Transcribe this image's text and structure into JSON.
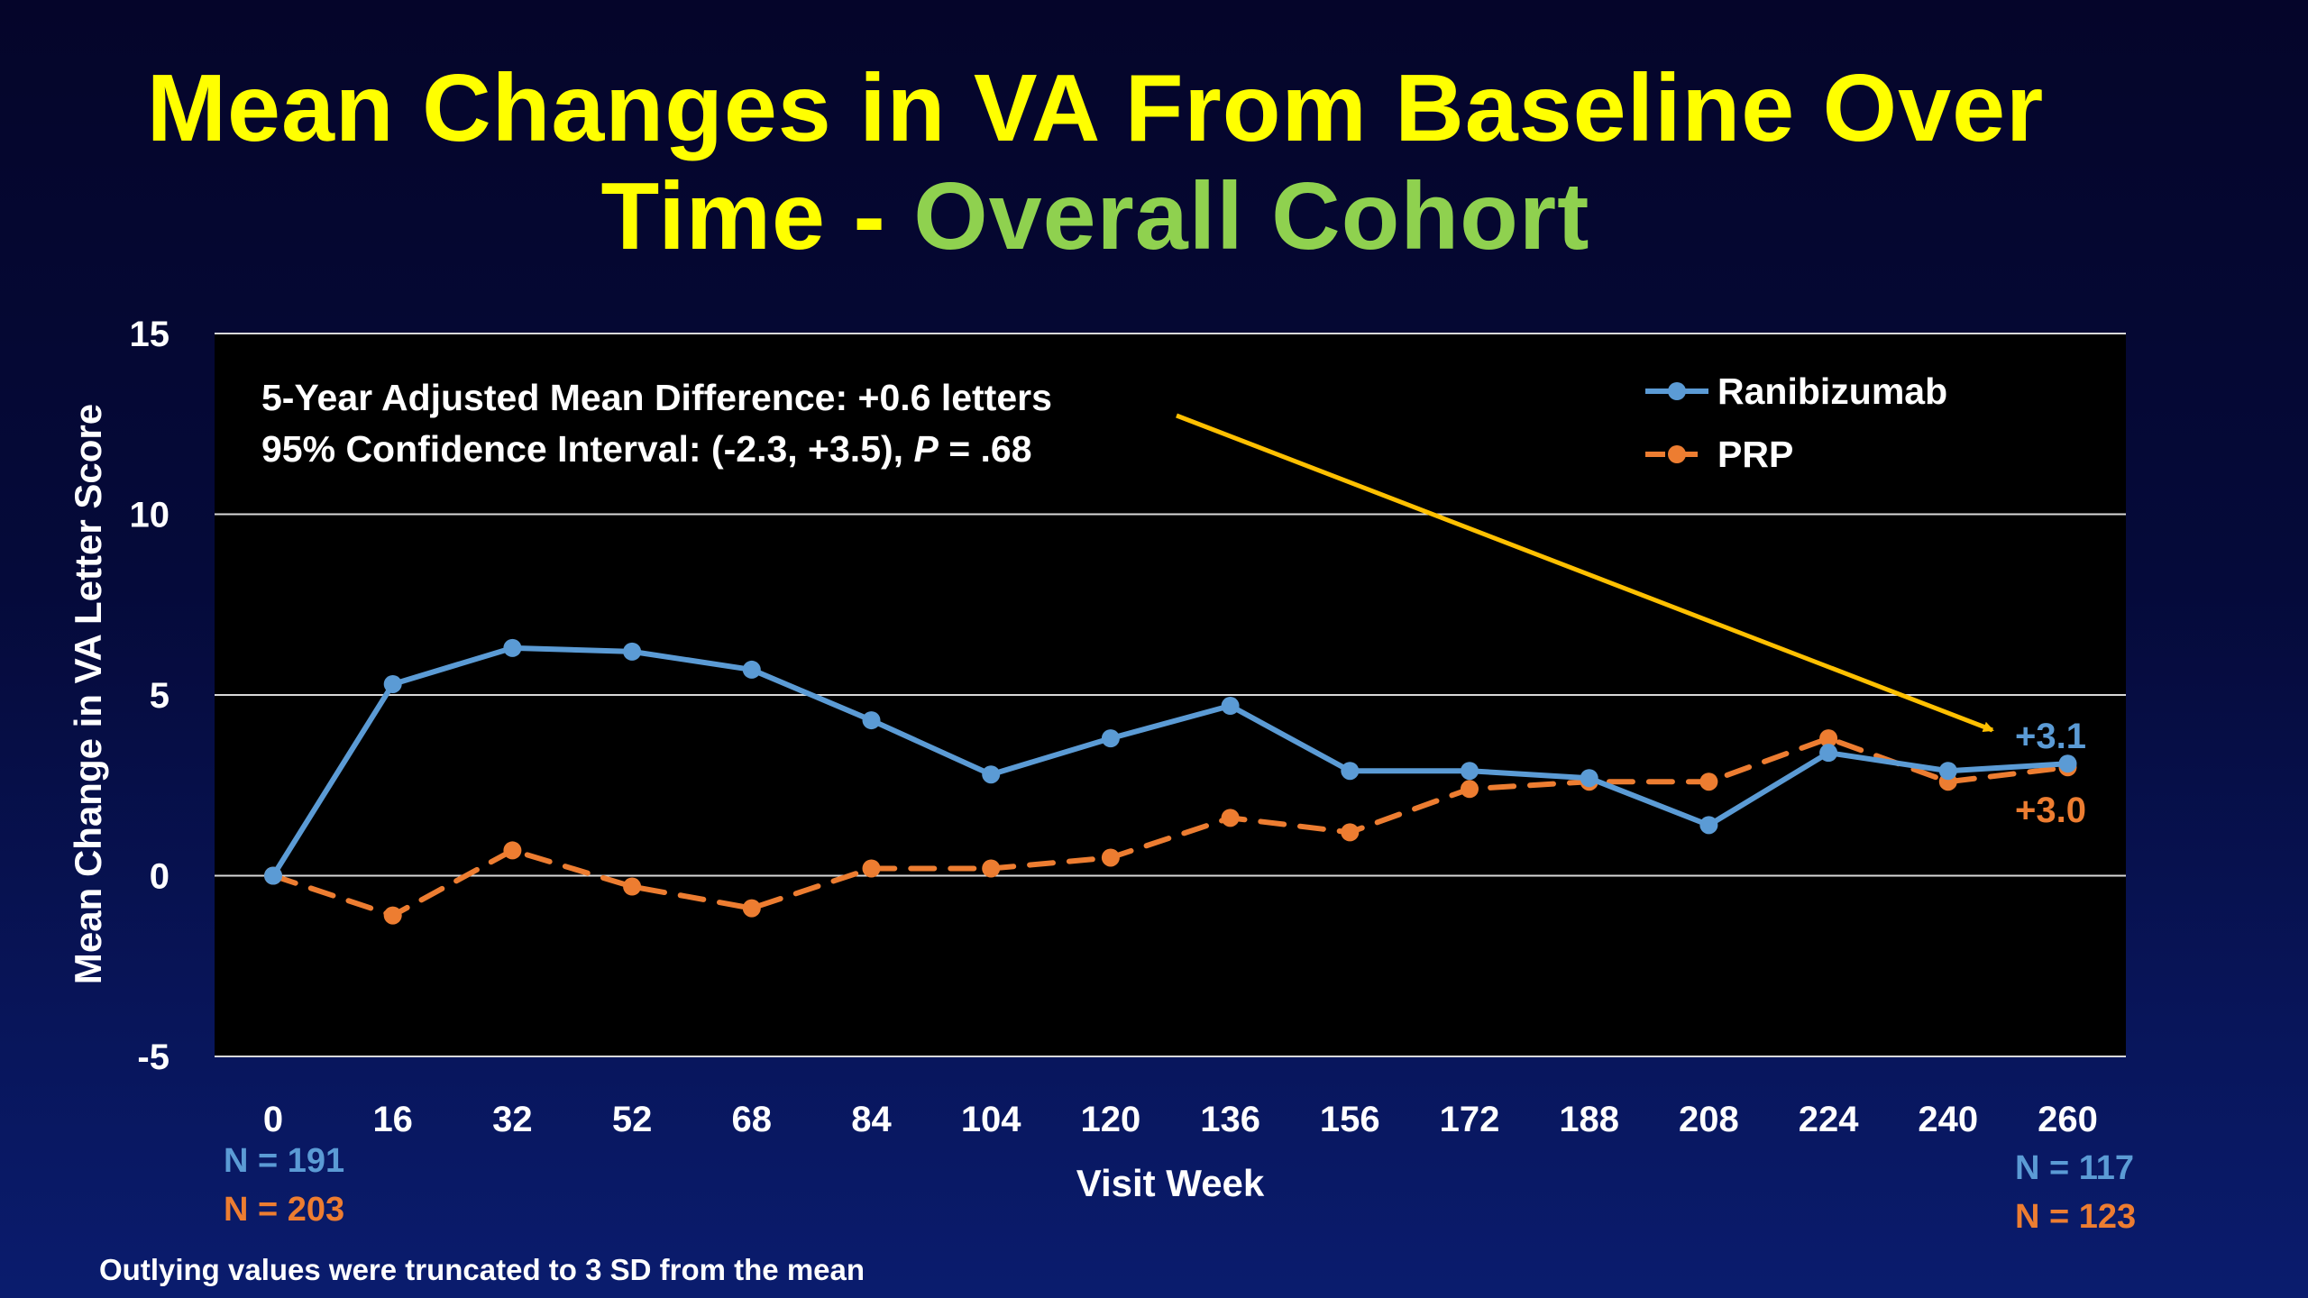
{
  "slide": {
    "title_line1": "Mean Changes in VA From Baseline Over",
    "title_line2_part1": "Time - ",
    "title_line2_part2": "Overall Cohort",
    "footnote": "Outlying values were truncated to 3 SD from the mean"
  },
  "colors": {
    "title": "#ffff00",
    "title_accent": "#8fd14f",
    "ranibizumab": "#5b9bd5",
    "prp": "#ed7d31",
    "arrow": "#ffc000",
    "plot_bg": "#000000",
    "grid": "#d9d9d9"
  },
  "chart_data": {
    "type": "line",
    "title": "",
    "xlabel": "Visit Week",
    "ylabel": "Mean Change in VA Letter Score",
    "ylim": [
      -5,
      15
    ],
    "yticks": [
      "-5",
      "0",
      "5",
      "10",
      "15"
    ],
    "categories": [
      "0",
      "16",
      "32",
      "52",
      "68",
      "84",
      "104",
      "120",
      "136",
      "156",
      "172",
      "188",
      "208",
      "224",
      "240",
      "260"
    ],
    "grid": true,
    "legend_position": "top-right",
    "series": [
      {
        "name": "Ranibizumab",
        "style": "solid",
        "values": [
          0,
          5.3,
          6.3,
          6.2,
          5.7,
          4.3,
          2.8,
          3.8,
          4.7,
          2.9,
          2.9,
          2.7,
          1.4,
          3.4,
          2.9,
          3.1
        ],
        "end_label": "+3.1",
        "n_start": "N = 191",
        "n_end": "N = 117"
      },
      {
        "name": "PRP",
        "style": "dashed",
        "values": [
          0,
          -1.1,
          0.7,
          -0.3,
          -0.9,
          0.2,
          0.2,
          0.5,
          1.6,
          1.2,
          2.4,
          2.6,
          2.6,
          3.8,
          2.6,
          3.0
        ],
        "end_label": "+3.0",
        "n_start": "N = 203",
        "n_end": "N = 123"
      }
    ],
    "annotation": {
      "line1": "5-Year Adjusted Mean Difference: +0.6 letters",
      "line2_prefix": "95% Confidence Interval: (-2.3, +3.5), ",
      "line2_p": "P",
      "line2_suffix": " = .68"
    }
  }
}
